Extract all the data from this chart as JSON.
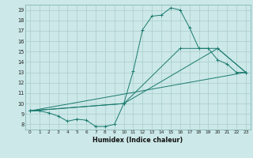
{
  "xlabel": "Humidex (Indice chaleur)",
  "bg_color": "#cce8e8",
  "grid_color": "#aacccc",
  "line_color": "#1a7a6e",
  "xlim": [
    -0.5,
    23.5
  ],
  "ylim": [
    7.5,
    19.5
  ],
  "xticks": [
    0,
    1,
    2,
    3,
    4,
    5,
    6,
    7,
    8,
    9,
    10,
    11,
    12,
    13,
    14,
    15,
    16,
    17,
    18,
    19,
    20,
    21,
    22,
    23
  ],
  "yticks": [
    8,
    9,
    10,
    11,
    12,
    13,
    14,
    15,
    16,
    17,
    18,
    19
  ],
  "line1_x": [
    0,
    1,
    2,
    3,
    4,
    5,
    6,
    7,
    8,
    9,
    10,
    11,
    12,
    13,
    14,
    15,
    16,
    17,
    18,
    19,
    20,
    21,
    22,
    23
  ],
  "line1_y": [
    9.3,
    9.3,
    9.1,
    8.8,
    8.3,
    8.5,
    8.4,
    7.8,
    7.8,
    8.0,
    10.0,
    13.1,
    17.1,
    18.4,
    18.5,
    19.2,
    19.0,
    17.3,
    15.3,
    15.3,
    14.2,
    13.8,
    13.0,
    13.0
  ],
  "line2_x": [
    0,
    23
  ],
  "line2_y": [
    9.3,
    13.0
  ],
  "line3_x": [
    0,
    10,
    20,
    23
  ],
  "line3_y": [
    9.3,
    10.0,
    15.3,
    13.0
  ],
  "line4_x": [
    0,
    10,
    16,
    20,
    23
  ],
  "line4_y": [
    9.3,
    10.0,
    15.3,
    15.3,
    13.0
  ]
}
